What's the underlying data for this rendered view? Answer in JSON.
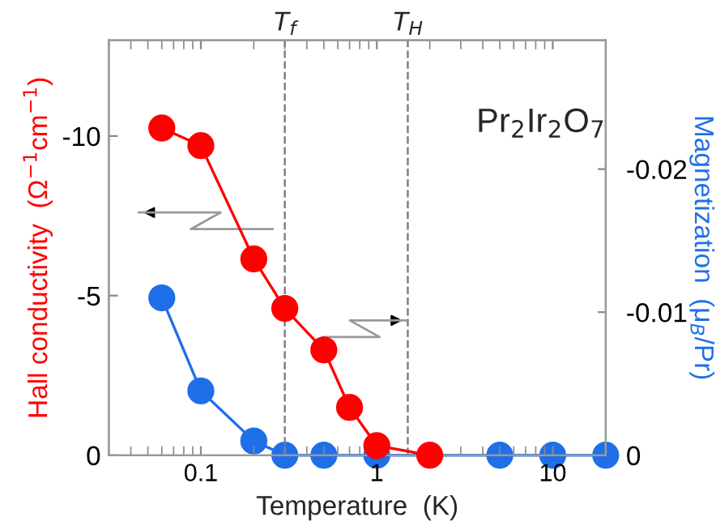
{
  "chart_data": {
    "type": "line",
    "xlabel": "Temperature  (K)",
    "ylabel": "Hall conductivity  (Ω$^{−1}$cm$^{−1}$)",
    "y2label": "Magnetization  (μ$_{B}$/Pr)",
    "log": "x",
    "xlim": [
      0.03,
      20
    ],
    "xticks": [
      {
        "value": 0.1,
        "label": "0.1"
      },
      {
        "value": 1,
        "label": "1"
      },
      {
        "value": 10,
        "label": "10"
      }
    ],
    "ylim": [
      0,
      -13
    ],
    "yticks": [
      -10,
      -5,
      0
    ],
    "y2lim": [
      0,
      -0.029
    ],
    "y2ticks": [
      -0.02,
      -0.01,
      0
    ],
    "marker": "circle",
    "line_style": "solid",
    "grid": false,
    "series": [
      {
        "color": "#ff0000",
        "x": [
          0.06,
          0.1,
          0.2,
          0.3,
          0.5,
          0.7,
          1,
          2
        ],
        "values": [
          -10.25,
          -9.7,
          -6.15,
          -4.6,
          -3.3,
          -1.5,
          -0.3,
          0
        ]
      },
      {
        "color": "#1f6fe8",
        "axis": "y2",
        "x": [
          0.06,
          0.1,
          0.2,
          0.3,
          0.5,
          1,
          5,
          10,
          20
        ],
        "values": [
          -0.011,
          -0.0045,
          -0.001,
          0,
          0,
          0,
          0,
          0,
          0
        ]
      }
    ],
    "ref_lines": [
      {
        "axis": "x",
        "value": 0.3,
        "label": "T$_{f}$",
        "color": "#808080",
        "line_style": "dashed"
      },
      {
        "axis": "x",
        "value": 1.5,
        "label": "T$_{H}$",
        "color": "#808080",
        "line_style": "dashed"
      }
    ],
    "annotations": [
      "Pr$_{2}$Ir$_{2}$O$_{7}$"
    ]
  }
}
